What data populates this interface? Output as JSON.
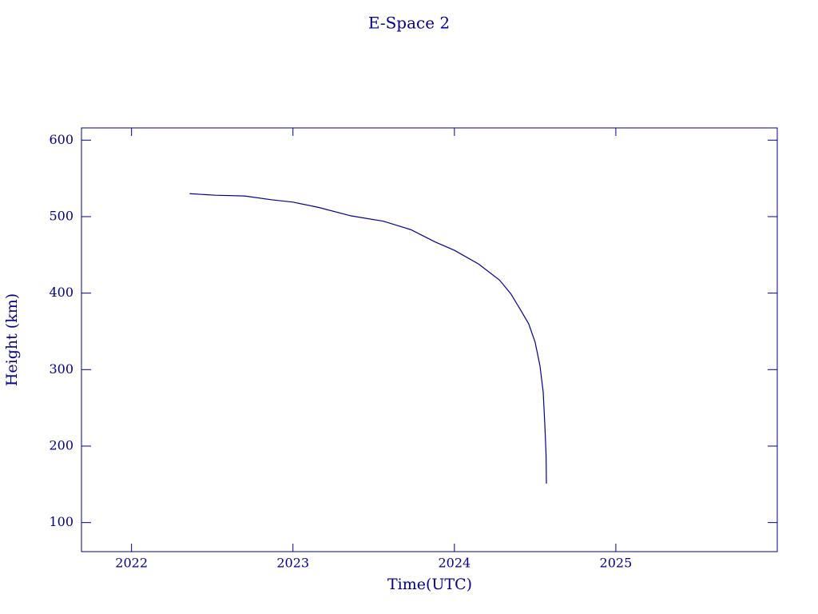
{
  "chart_data": {
    "type": "line",
    "title": "E-Space 2",
    "x_label": "Time(UTC)",
    "y_label": "Height (km)",
    "x": [
      2022.36,
      2022.52,
      2022.7,
      2022.87,
      2023.0,
      2023.16,
      2023.36,
      2023.56,
      2023.73,
      2023.88,
      2024.0,
      2024.15,
      2024.28,
      2024.35,
      2024.41,
      2024.46,
      2024.5,
      2024.53,
      2024.55,
      2024.56,
      2024.568,
      2024.57
    ],
    "series": [
      {
        "name": "E-Space 2",
        "color": "#00008b",
        "values": [
          530,
          528,
          527,
          522,
          519,
          512,
          501,
          494,
          483,
          467,
          456,
          438,
          417,
          399,
          378,
          360,
          336,
          305,
          271,
          229,
          188,
          151
        ]
      }
    ],
    "xlim": [
      2021.69,
      2026.0
    ],
    "xticks": [
      2022,
      2023,
      2024,
      2025
    ],
    "ylim": [
      62,
      616
    ],
    "yticks": [
      100,
      200,
      300,
      400,
      500,
      600
    ]
  }
}
